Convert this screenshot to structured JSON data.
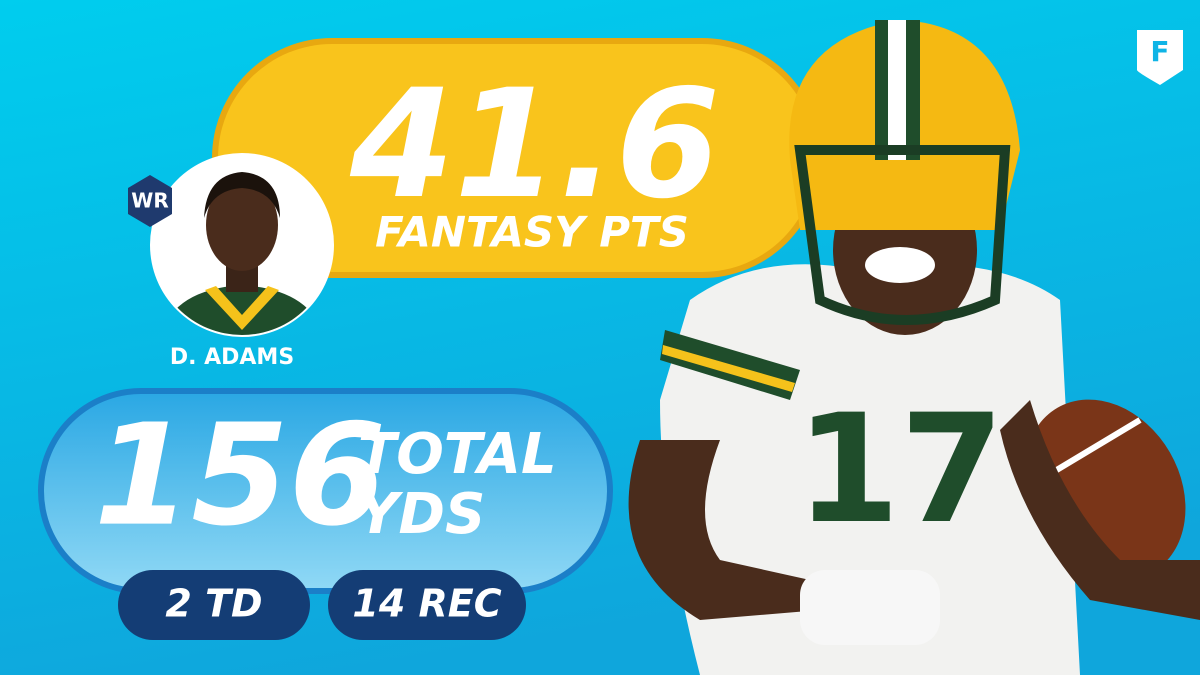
{
  "logo": {
    "letter": "F"
  },
  "headline": {
    "value": "41.6",
    "label": "FANTASY PTS"
  },
  "player": {
    "position": "WR",
    "name": "D. ADAMS"
  },
  "yards": {
    "value": "156",
    "label_top": "TOTAL",
    "label_bottom": "YDS"
  },
  "stats": [
    "2 TD",
    "14 REC"
  ]
}
